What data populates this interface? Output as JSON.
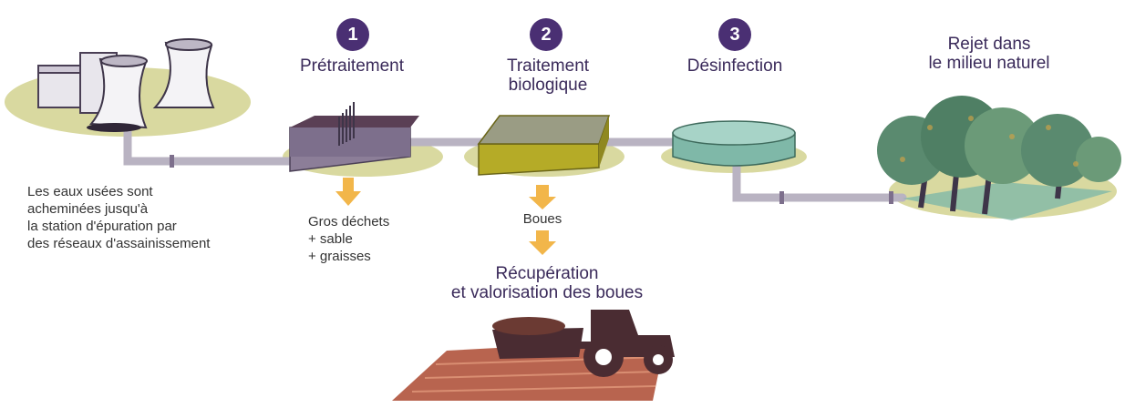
{
  "steps": [
    {
      "number": "1",
      "title": "Prétraitement"
    },
    {
      "number": "2",
      "title": "Traitement\nbiologique"
    },
    {
      "number": "3",
      "title": "Désinfection"
    }
  ],
  "release": {
    "line1": "Rejet dans",
    "line2": "le milieu naturel"
  },
  "intro": {
    "line1": "Les eaux usées sont",
    "line2": "acheminées jusqu'à",
    "line3": "la station d'épuration par",
    "line4": "des réseaux d'assainissement"
  },
  "pretreatment_output": {
    "line1": "Gros déchets",
    "line2": "+ sable",
    "line3": "+ graisses"
  },
  "sludge_label": "Boues",
  "recovery": {
    "line1": "Récupération",
    "line2": "et valorisation des boues"
  },
  "colors": {
    "accent": "#4a2f73",
    "arrow": "#f2b64a",
    "ground": "#d9d9a0",
    "pipe": "#b9b3c2",
    "basin_olive": "#b5ab27",
    "basin_purple": "#7d6f8c",
    "tank_green": "#7fb8a8",
    "field": "#b8644f",
    "tractor": "#4a2c32"
  }
}
